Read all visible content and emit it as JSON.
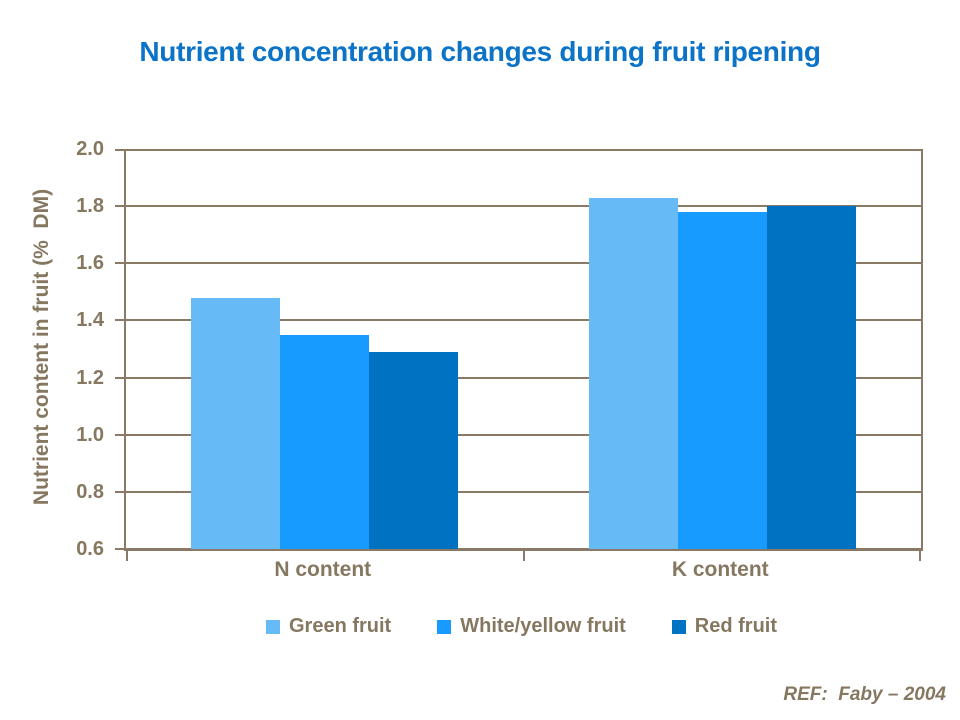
{
  "title": "Nutrient concentration changes during fruit ripening",
  "ref_note": "REF:  Faby – 2004",
  "colors": {
    "title": "#0B73C8",
    "axis_text": "#867860",
    "grid": "#8A7964",
    "background": "#FFFFFF"
  },
  "chart_data": {
    "type": "bar",
    "title": "Nutrient concentration changes during fruit ripening",
    "categories": [
      "N content",
      "K content"
    ],
    "series": [
      {
        "name": "Green fruit",
        "color": "#66BBF7",
        "values": [
          1.48,
          1.83
        ]
      },
      {
        "name": "White/yellow fruit",
        "color": "#189BFF",
        "values": [
          1.35,
          1.78
        ]
      },
      {
        "name": "Red fruit",
        "color": "#0072C2",
        "values": [
          1.29,
          1.8
        ]
      }
    ],
    "xlabel": "",
    "ylabel": "Nutrient content in fruit (%  DM)",
    "ylim": [
      0.6,
      2.0
    ],
    "ytick_step": 0.2,
    "yticks": [
      "2.0",
      "1.8",
      "1.6",
      "1.4",
      "1.2",
      "1.0",
      "0.8",
      "0.6"
    ],
    "grid": "horizontal",
    "legend_position": "bottom"
  }
}
